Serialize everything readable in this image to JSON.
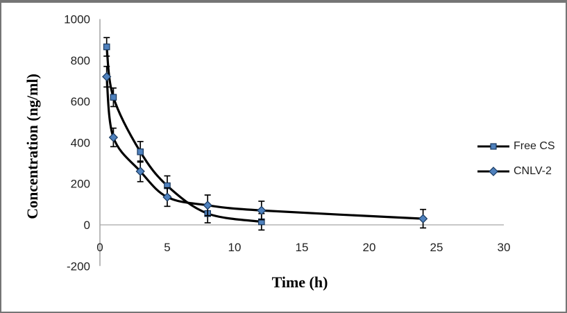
{
  "figure": {
    "background": "#ffffff",
    "border_color": "#757575"
  },
  "chart_data": {
    "type": "line",
    "title": "",
    "xlabel": "Time (h)",
    "ylabel": "Concentration (ng/ml)",
    "xlim": [
      0,
      30
    ],
    "ylim": [
      -200,
      1000
    ],
    "x_ticks": [
      0,
      5,
      10,
      15,
      20,
      25,
      30
    ],
    "y_ticks": [
      -200,
      0,
      200,
      400,
      600,
      800,
      1000
    ],
    "grid": false,
    "legend_position": "right",
    "colors": {
      "line": "#000000",
      "marker_fill": "#4f81bd",
      "marker_stroke": "#17375e",
      "axis_line": "#8c8c8c",
      "zero_line": "#a6a6a6",
      "tick_text": "#1f1f1f"
    },
    "series": [
      {
        "name": "Free CS",
        "marker": "square",
        "x": [
          0.5,
          1,
          3,
          5,
          8,
          12
        ],
        "values": [
          865,
          620,
          355,
          190,
          55,
          15
        ],
        "errors": [
          45,
          45,
          50,
          48,
          45,
          40
        ]
      },
      {
        "name": "CNLV-2",
        "marker": "diamond",
        "x": [
          0.5,
          1,
          3,
          5,
          8,
          12,
          24
        ],
        "values": [
          720,
          425,
          260,
          135,
          95,
          70,
          30
        ],
        "errors": [
          50,
          45,
          50,
          45,
          50,
          45,
          45
        ]
      }
    ]
  }
}
